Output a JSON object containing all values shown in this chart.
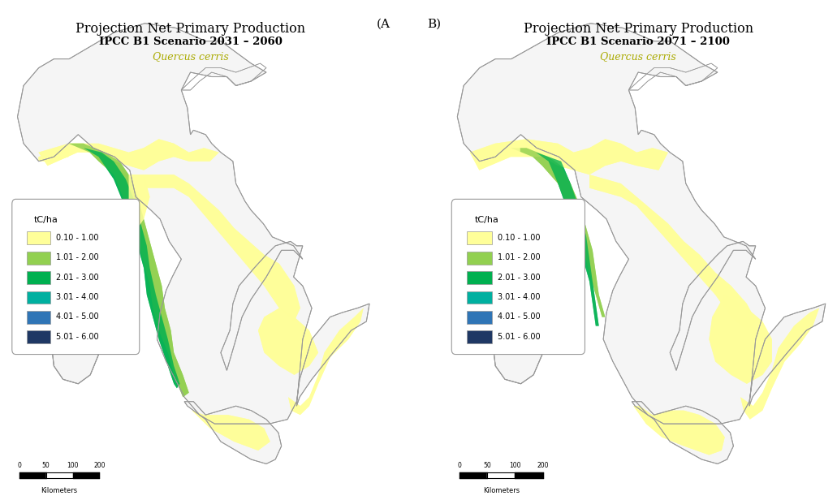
{
  "title_left": "Projection Net Primary Production",
  "subtitle_left": "IPCC B1 Scenario 2031 – 2060",
  "species": "Quercus cerris",
  "title_right": "Projection Net Primary Production",
  "subtitle_right": "IPCC B1 Scenario 2071 – 2100",
  "label_A": "(A",
  "label_B": "B)",
  "legend_title": "tC/ha",
  "legend_items": [
    {
      "label": "0.10 - 1.00",
      "color": "#FFFF99"
    },
    {
      "label": "1.01 - 2.00",
      "color": "#92D050"
    },
    {
      "label": "2.01 - 3.00",
      "color": "#00B050"
    },
    {
      "label": "3.01 - 4.00",
      "color": "#00B0A0"
    },
    {
      "label": "4.01 - 5.00",
      "color": "#2F75B6"
    },
    {
      "label": "5.01 - 6.00",
      "color": "#1F3864"
    }
  ],
  "scalebar_text": "Kilometers",
  "bg_color": "#FFFFFF",
  "border_color": "#AAAAAA",
  "map_outline_color": "#AAAAAA",
  "title_fontsize": 12,
  "subtitle_fontsize": 10,
  "species_fontsize": 9.5,
  "species_color": "#AAAA00",
  "label_fontsize": 12
}
